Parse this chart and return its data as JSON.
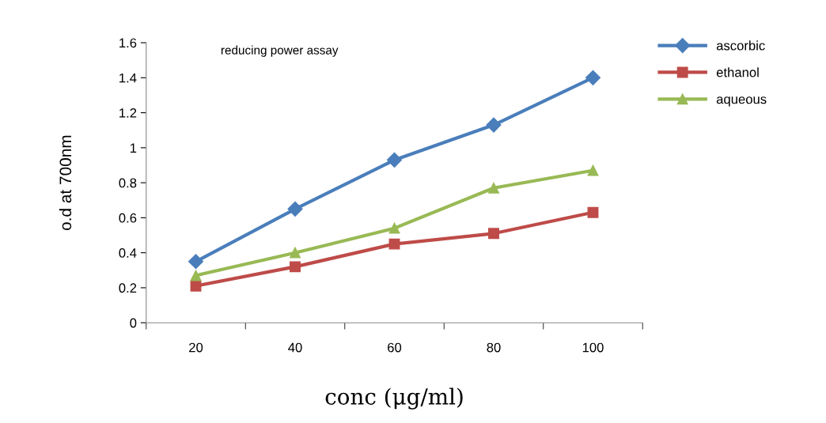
{
  "chart_data": {
    "type": "line",
    "title": "reducing power assay",
    "xlabel": "conc (μg/ml)",
    "ylabel": "o.d at 700nm",
    "categories": [
      "20",
      "40",
      "60",
      "80",
      "100"
    ],
    "series": [
      {
        "name": "ascorbic",
        "color": "#4a7ebb",
        "marker": "diamond",
        "values": [
          0.35,
          0.65,
          0.93,
          1.13,
          1.4
        ]
      },
      {
        "name": "ethanol",
        "color": "#be4b48",
        "marker": "square",
        "values": [
          0.21,
          0.32,
          0.45,
          0.51,
          0.63
        ]
      },
      {
        "name": "aqueous",
        "color": "#98b954",
        "marker": "triangle",
        "values": [
          0.27,
          0.4,
          0.54,
          0.77,
          0.87
        ]
      }
    ],
    "ylim": [
      0,
      1.6
    ],
    "yticks": [
      0,
      0.2,
      0.4,
      0.6,
      0.8,
      1,
      1.2,
      1.4,
      1.6
    ],
    "grid": false,
    "legend": "top right",
    "line_style": "solid"
  }
}
